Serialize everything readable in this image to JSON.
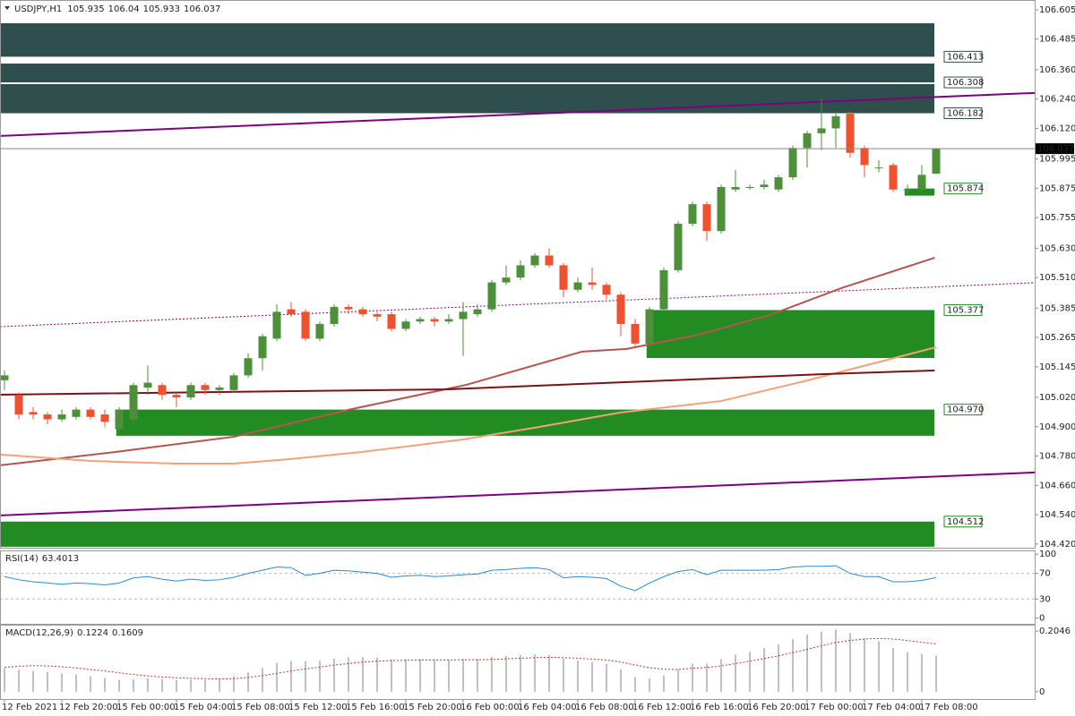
{
  "chart_data": [
    {
      "type": "candlestick",
      "symbol": "USDJPY,H1",
      "categories": [
        "12 Feb 2021",
        null,
        null,
        null,
        "12 Feb 20:00",
        null,
        null,
        null,
        "15 Feb 00:00",
        null,
        null,
        null,
        "15 Feb 04:00",
        null,
        null,
        null,
        "15 Feb 08:00",
        null,
        null,
        null,
        "15 Feb 12:00",
        null,
        null,
        null,
        "15 Feb 16:00",
        null,
        null,
        null,
        "15 Feb 20:00",
        null,
        null,
        null,
        "16 Feb 00:00",
        null,
        null,
        null,
        "16 Feb 04:00",
        null,
        null,
        null,
        "16 Feb 08:00",
        null,
        null,
        null,
        "16 Feb 12:00",
        null,
        null,
        null,
        "16 Feb 16:00",
        null,
        null,
        null,
        "16 Feb 20:00",
        null,
        null,
        null,
        "17 Feb 00:00",
        null,
        null,
        null,
        "17 Feb 04:00",
        null,
        null,
        null,
        "17 Feb 08:00",
        null
      ],
      "open": [
        105.09,
        105.03,
        104.96,
        104.95,
        104.93,
        104.94,
        104.97,
        104.95,
        104.89,
        104.93,
        105.06,
        105.07,
        105.03,
        105.02,
        105.07,
        105.05,
        105.05,
        105.11,
        105.18,
        105.26,
        105.38,
        105.37,
        105.26,
        105.32,
        105.39,
        105.38,
        105.36,
        105.36,
        105.3,
        105.33,
        105.34,
        105.33,
        105.34,
        105.36,
        105.38,
        105.49,
        105.51,
        105.56,
        105.6,
        105.56,
        105.46,
        105.49,
        105.48,
        105.44,
        105.32,
        105.24,
        105.38,
        105.54,
        105.73,
        105.81,
        105.7,
        105.87,
        105.88,
        105.88,
        105.87,
        105.92,
        106.04,
        106.1,
        106.12,
        106.18,
        106.04,
        105.96,
        105.97,
        105.87,
        105.87,
        105.935
      ],
      "high": [
        105.13,
        105.04,
        104.98,
        104.96,
        104.97,
        104.98,
        104.98,
        104.97,
        104.98,
        105.08,
        105.15,
        105.08,
        105.04,
        105.08,
        105.08,
        105.07,
        105.12,
        105.2,
        105.28,
        105.4,
        105.41,
        105.38,
        105.33,
        105.4,
        105.4,
        105.39,
        105.37,
        105.37,
        105.34,
        105.35,
        105.35,
        105.36,
        105.41,
        105.4,
        105.5,
        105.56,
        105.58,
        105.61,
        105.63,
        105.57,
        105.51,
        105.55,
        105.49,
        105.45,
        105.34,
        105.39,
        105.55,
        105.74,
        105.82,
        105.82,
        105.89,
        105.95,
        105.89,
        105.91,
        105.93,
        106.05,
        106.11,
        106.24,
        106.19,
        106.19,
        106.05,
        105.99,
        105.98,
        105.89,
        105.97,
        106.04
      ],
      "low": [
        105.05,
        104.93,
        104.93,
        104.91,
        104.92,
        104.93,
        104.93,
        104.9,
        104.87,
        104.91,
        105.03,
        105.01,
        104.98,
        105.01,
        105.03,
        105.03,
        105.04,
        105.1,
        105.13,
        105.25,
        105.35,
        105.25,
        105.25,
        105.31,
        105.36,
        105.35,
        105.33,
        105.29,
        105.29,
        105.32,
        105.31,
        105.32,
        105.19,
        105.35,
        105.37,
        105.48,
        105.5,
        105.55,
        105.55,
        105.43,
        105.45,
        105.46,
        105.42,
        105.27,
        105.23,
        105.22,
        105.37,
        105.53,
        105.72,
        105.66,
        105.69,
        105.86,
        105.87,
        105.87,
        105.86,
        105.91,
        105.96,
        106.03,
        106.04,
        106.0,
        105.92,
        105.94,
        105.86,
        105.85,
        105.86,
        105.933
      ],
      "close": [
        105.11,
        104.95,
        104.95,
        104.93,
        104.95,
        104.97,
        104.94,
        104.92,
        104.97,
        105.07,
        105.08,
        105.03,
        105.02,
        105.07,
        105.05,
        105.06,
        105.11,
        105.18,
        105.27,
        105.37,
        105.36,
        105.26,
        105.32,
        105.39,
        105.38,
        105.36,
        105.35,
        105.3,
        105.33,
        105.34,
        105.33,
        105.34,
        105.37,
        105.38,
        105.49,
        105.51,
        105.56,
        105.6,
        105.56,
        105.46,
        105.49,
        105.48,
        105.44,
        105.32,
        105.24,
        105.38,
        105.54,
        105.73,
        105.81,
        105.7,
        105.88,
        105.88,
        105.88,
        105.89,
        105.92,
        106.04,
        106.1,
        106.12,
        106.17,
        106.02,
        105.97,
        105.96,
        105.87,
        105.87,
        105.93,
        106.037
      ],
      "up_color": "#4e8f3a",
      "down_color": "#f0502e",
      "ylim": [
        104.405,
        106.645
      ],
      "yticks": [
        106.605,
        106.485,
        {
          "value": 106.36,
          "label": "106.360"
        },
        {
          "value": 106.24,
          "label": "106.240"
        },
        {
          "value": 106.12,
          "label": "106.120"
        },
        105.995,
        105.875,
        105.755,
        {
          "value": 105.63,
          "label": "105.630"
        },
        {
          "value": 105.51,
          "label": "105.510"
        },
        105.385,
        105.265,
        105.145,
        {
          "value": 105.02,
          "label": "105.020"
        },
        {
          "value": 104.9,
          "label": "104.900"
        },
        {
          "value": 104.78,
          "label": "104.780"
        },
        {
          "value": 104.66,
          "label": "104.660"
        },
        {
          "value": 104.54,
          "label": "104.540"
        },
        {
          "value": 104.42,
          "label": "104.420"
        }
      ],
      "last_price_line": true,
      "zones": [
        {
          "price": 106.413,
          "edge": 106.55,
          "start": -0.3,
          "label": "106.413",
          "color": "#2f4f4f"
        },
        {
          "price": 106.308,
          "edge": 106.385,
          "start": -0.3,
          "label": "106.308",
          "color": "#2f4f4f"
        },
        {
          "price": 106.182,
          "edge": 106.301,
          "start": -0.3,
          "label": "106.182",
          "color": "#2f4f4f"
        },
        {
          "price": 105.377,
          "edge": 105.181,
          "start": 44.8,
          "label": "105.377",
          "color": "#228b22"
        },
        {
          "price": 104.97,
          "edge": 104.863,
          "start": 7.8,
          "label": "104.970",
          "color": "#228b22"
        },
        {
          "price": 104.512,
          "edge": 104.409,
          "start": -0.3,
          "label": "104.512",
          "color": "#228b22"
        },
        {
          "price": 105.874,
          "edge": 105.845,
          "start": 62.8,
          "label": "105.874",
          "color": "#228b22"
        }
      ],
      "lines": [
        {
          "x": [
            -0.3,
            71.9
          ],
          "values": [
            106.089,
            106.265
          ],
          "color": "#800080",
          "width": 2,
          "dashed": false
        },
        {
          "x": [
            -0.3,
            71.9
          ],
          "values": [
            104.537,
            104.713
          ],
          "color": "#800080",
          "width": 2,
          "dashed": false
        },
        {
          "x": [
            -0.3,
            71.9
          ],
          "values": [
            105.309,
            105.489
          ],
          "color": "#800080",
          "width": 1,
          "dashed": true
        },
        {
          "x": [
            -0.3,
            7.8,
            16,
            24,
            32.2,
            40.3,
            43.4,
            48.4,
            53.4,
            58.4,
            64.9
          ],
          "values": [
            104.742,
            104.797,
            104.859,
            104.969,
            105.071,
            105.207,
            105.218,
            105.276,
            105.357,
            105.467,
            105.591
          ],
          "color": "#b85450",
          "width": 2,
          "dashed": false
        },
        {
          "x": [
            -0.3,
            6,
            12,
            16,
            20,
            25,
            32,
            37,
            43,
            50,
            56,
            65
          ],
          "values": [
            104.786,
            104.76,
            104.749,
            104.749,
            104.768,
            104.797,
            104.848,
            104.896,
            104.958,
            105.005,
            105.089,
            105.225
          ],
          "color": "#f4a07a",
          "width": 2,
          "dashed": false
        },
        {
          "x": [
            -0.3,
            31,
            57.2,
            64.9
          ],
          "values": [
            105.031,
            105.053,
            105.115,
            105.13
          ],
          "color": "#7a1414",
          "width": 2,
          "dashed": false
        }
      ]
    },
    {
      "type": "line",
      "title": "RSI(14)",
      "color": "#2a8ad4",
      "values": [
        65,
        60,
        57,
        55,
        53,
        55,
        54,
        52,
        55,
        63,
        65,
        61,
        58,
        61,
        59,
        60,
        64,
        70,
        75,
        80,
        79,
        67,
        70,
        75,
        74,
        72,
        70,
        64,
        66,
        67,
        65,
        66,
        68,
        69,
        75,
        76,
        78,
        79,
        76,
        63,
        65,
        64,
        62,
        50,
        43,
        55,
        65,
        73,
        76,
        68,
        75,
        75,
        75,
        75,
        76,
        80,
        81,
        81,
        82,
        70,
        65,
        65,
        57,
        57,
        59,
        63.4013
      ],
      "ylim": [
        -8.8,
        105.9
      ],
      "yticks": [
        100,
        70,
        30,
        0
      ],
      "grid": "inner"
    },
    {
      "type": "bar",
      "title": "MACD(12,26,9)",
      "color": "#c0c0c0",
      "values": [
        0.078,
        0.074,
        0.07,
        0.066,
        0.062,
        0.058,
        0.052,
        0.047,
        0.04,
        0.041,
        0.045,
        0.044,
        0.04,
        0.04,
        0.04,
        0.042,
        0.052,
        0.065,
        0.08,
        0.098,
        0.104,
        0.103,
        0.105,
        0.112,
        0.116,
        0.117,
        0.115,
        0.11,
        0.11,
        0.11,
        0.108,
        0.108,
        0.11,
        0.111,
        0.118,
        0.121,
        0.124,
        0.126,
        0.124,
        0.111,
        0.105,
        0.1,
        0.094,
        0.075,
        0.05,
        0.045,
        0.055,
        0.075,
        0.095,
        0.095,
        0.11,
        0.125,
        0.135,
        0.148,
        0.16,
        0.178,
        0.193,
        0.203,
        0.21,
        0.198,
        0.18,
        0.17,
        0.148,
        0.133,
        0.128,
        0.1224
      ],
      "signal": {
        "color": "#c0392b",
        "values": [
          0.082,
          0.086,
          0.088,
          0.087,
          0.084,
          0.08,
          0.075,
          0.07,
          0.064,
          0.058,
          0.053,
          0.05,
          0.047,
          0.045,
          0.044,
          0.043,
          0.044,
          0.048,
          0.054,
          0.062,
          0.07,
          0.077,
          0.083,
          0.09,
          0.095,
          0.1,
          0.103,
          0.105,
          0.106,
          0.107,
          0.107,
          0.107,
          0.108,
          0.108,
          0.109,
          0.111,
          0.113,
          0.115,
          0.116,
          0.115,
          0.113,
          0.11,
          0.107,
          0.1,
          0.09,
          0.081,
          0.076,
          0.075,
          0.079,
          0.082,
          0.087,
          0.095,
          0.103,
          0.112,
          0.121,
          0.132,
          0.143,
          0.155,
          0.166,
          0.173,
          0.178,
          0.18,
          0.178,
          0.173,
          0.167,
          0.1609
        ]
      },
      "ylim": [
        -0.0248,
        0.2263
      ],
      "yticks": [
        0.2046,
        0
      ]
    }
  ]
}
